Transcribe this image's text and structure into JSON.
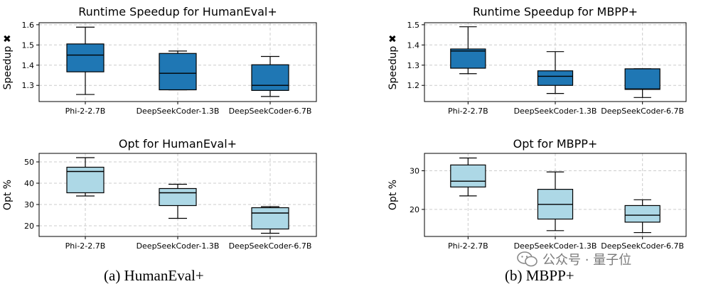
{
  "captions": {
    "a": "(a) HumanEval+",
    "b": "(b) MBPP+"
  },
  "watermark": {
    "text": "公众号 · 量子位",
    "icon": "wechat-logo"
  },
  "colors": {
    "speedup_box": "#1f77b4",
    "opt_box": "#add8e6",
    "grid": "#cccccc"
  },
  "chart_data": [
    {
      "type": "box",
      "title": "Runtime Speedup for HumanEval+",
      "xlabel": "",
      "ylabel": "Speedup ✖",
      "ylim": [
        1.22,
        1.61
      ],
      "yticks": [
        "1.3",
        "1.4",
        "1.5",
        "1.6"
      ],
      "grid": true,
      "color": "#1f77b4",
      "categories": [
        "Phi-2-2.7B",
        "DeepSeekCoder-1.3B",
        "DeepSeekCoder-6.7B"
      ],
      "boxes": [
        {
          "whislo": 1.255,
          "q1": 1.367,
          "med": 1.45,
          "q3": 1.505,
          "whishi": 1.588
        },
        {
          "whislo": 1.278,
          "q1": 1.278,
          "med": 1.36,
          "q3": 1.458,
          "whishi": 1.47
        },
        {
          "whislo": 1.245,
          "q1": 1.275,
          "med": 1.3,
          "q3": 1.402,
          "whishi": 1.443
        }
      ]
    },
    {
      "type": "box",
      "title": "Runtime Speedup for MBPP+",
      "xlabel": "",
      "ylabel": "Speedup ✖",
      "ylim": [
        1.12,
        1.51
      ],
      "yticks": [
        "1.2",
        "1.3",
        "1.4",
        "1.5"
      ],
      "grid": true,
      "color": "#1f77b4",
      "categories": [
        "Phi-2-2.7B",
        "DeepSeekCoder-1.3B",
        "DeepSeekCoder-6.7B"
      ],
      "boxes": [
        {
          "whislo": 1.258,
          "q1": 1.285,
          "med": 1.37,
          "q3": 1.38,
          "whishi": 1.49
        },
        {
          "whislo": 1.16,
          "q1": 1.2,
          "med": 1.245,
          "q3": 1.272,
          "whishi": 1.367
        },
        {
          "whislo": 1.14,
          "q1": 1.18,
          "med": 1.182,
          "q3": 1.282,
          "whishi": 1.282
        }
      ]
    },
    {
      "type": "box",
      "title": "Opt for HumanEval+",
      "xlabel": "",
      "ylabel": "Opt %",
      "ylim": [
        15,
        54
      ],
      "yticks": [
        "20",
        "30",
        "40",
        "50"
      ],
      "grid": true,
      "color": "#add8e6",
      "categories": [
        "Phi-2-2.7B",
        "DeepSeekCoder-1.3B",
        "DeepSeekCoder-6.7B"
      ],
      "boxes": [
        {
          "whislo": 34,
          "q1": 35.5,
          "med": 45.5,
          "q3": 47.5,
          "whishi": 52
        },
        {
          "whislo": 23.5,
          "q1": 29.5,
          "med": 35.5,
          "q3": 37.5,
          "whishi": 39.5
        },
        {
          "whislo": 16.5,
          "q1": 18.5,
          "med": 26,
          "q3": 28.5,
          "whishi": 29
        }
      ]
    },
    {
      "type": "box",
      "title": "Opt for MBPP+",
      "xlabel": "",
      "ylabel": "Opt %",
      "ylim": [
        13,
        34.5
      ],
      "yticks": [
        "20",
        "30"
      ],
      "grid": true,
      "color": "#add8e6",
      "categories": [
        "Phi-2-2.7B",
        "DeepSeekCoder-1.3B",
        "DeepSeekCoder-6.7B"
      ],
      "boxes": [
        {
          "whislo": 23.5,
          "q1": 25.8,
          "med": 27.3,
          "q3": 31.5,
          "whishi": 33.3
        },
        {
          "whislo": 14.5,
          "q1": 17.5,
          "med": 21.3,
          "q3": 25.2,
          "whishi": 29.7
        },
        {
          "whislo": 14,
          "q1": 16.7,
          "med": 18.5,
          "q3": 21,
          "whishi": 22.5
        }
      ]
    }
  ]
}
